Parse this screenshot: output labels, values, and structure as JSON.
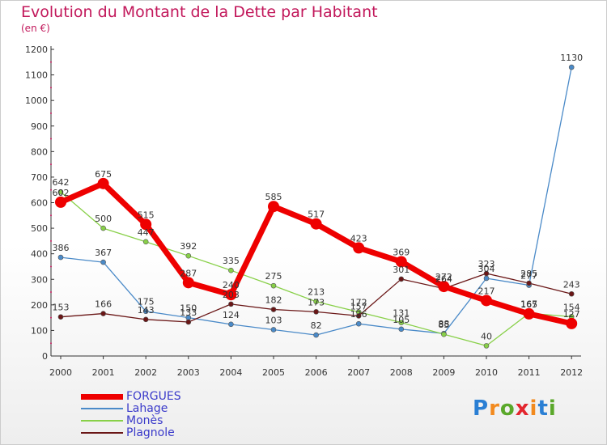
{
  "title": "Evolution du Montant de la Dette par Habitant",
  "subtitle": "(en €)",
  "logo": {
    "text": "Proxiti",
    "letter_colors": [
      "#2a7fd4",
      "#f28a1e",
      "#5aa82a",
      "#e3262e",
      "#f28a1e",
      "#2a7fd4",
      "#5aa82a"
    ]
  },
  "chart_data": {
    "type": "line",
    "x": [
      "2000",
      "2001",
      "2002",
      "2003",
      "2004",
      "2005",
      "2006",
      "2007",
      "2008",
      "2009",
      "2010",
      "2011",
      "2012"
    ],
    "ylim": [
      0,
      1200
    ],
    "yticks": [
      0,
      100,
      200,
      300,
      400,
      500,
      600,
      700,
      800,
      900,
      1000,
      1100,
      1200
    ],
    "grid": false,
    "legend_position": "bottom-left",
    "series": [
      {
        "name": "FORGUES",
        "color": "#ee0000",
        "values": [
          602,
          675,
          515,
          287,
          240,
          585,
          517,
          423,
          369,
          272,
          217,
          165,
          127
        ]
      },
      {
        "name": "Lahage",
        "color": "#4a8ac8",
        "values": [
          386,
          367,
          175,
          150,
          124,
          103,
          82,
          126,
          105,
          88,
          304,
          277,
          1130
        ]
      },
      {
        "name": "Monès",
        "color": "#88d048",
        "values": [
          642,
          500,
          447,
          392,
          335,
          275,
          213,
          172,
          131,
          85,
          40,
          167,
          154
        ]
      },
      {
        "name": "Plagnole",
        "color": "#6a1616",
        "values": [
          153,
          166,
          143,
          133,
          203,
          182,
          173,
          157,
          301,
          264,
          323,
          285,
          243
        ]
      }
    ]
  }
}
